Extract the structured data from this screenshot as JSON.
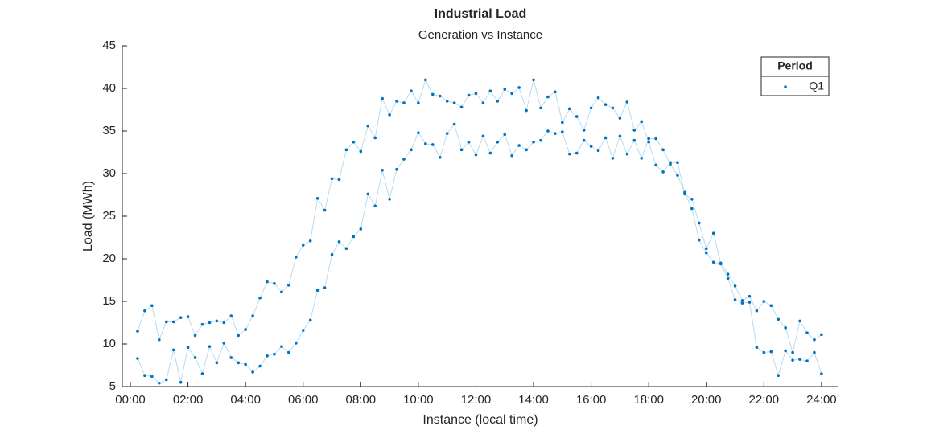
{
  "chart_data": {
    "type": "line",
    "title": "Industrial Load",
    "subtitle": "Generation vs Instance",
    "x_label": "Instance (local time)",
    "y_label": "Load (MWh)",
    "xlim": [
      -0.28,
      24.59
    ],
    "ylim": [
      5,
      45
    ],
    "xticks": [
      {
        "value": 0,
        "label": "00:00"
      },
      {
        "value": 2,
        "label": "02:00"
      },
      {
        "value": 4,
        "label": "04:00"
      },
      {
        "value": 6,
        "label": "06:00"
      },
      {
        "value": 8,
        "label": "08:00"
      },
      {
        "value": 10,
        "label": "10:00"
      },
      {
        "value": 12,
        "label": "12:00"
      },
      {
        "value": 14,
        "label": "14:00"
      },
      {
        "value": 16,
        "label": "16:00"
      },
      {
        "value": 18,
        "label": "18:00"
      },
      {
        "value": 20,
        "label": "20:00"
      },
      {
        "value": 22,
        "label": "22:00"
      },
      {
        "value": 24,
        "label": "24:00"
      }
    ],
    "yticks": [
      5,
      10,
      15,
      20,
      25,
      30,
      35,
      40,
      45
    ],
    "grid": false,
    "legend_title": "Period",
    "legend_position": "northeast",
    "line_color": "#b9dbef",
    "series": [
      {
        "name": "Q1",
        "color": "#0072bd",
        "x": [
          0.25,
          0.5,
          0.75,
          1,
          1.25,
          1.5,
          1.75,
          2,
          2.25,
          2.5,
          2.75,
          3,
          3.25,
          3.5,
          3.75,
          4,
          4.25,
          4.5,
          4.75,
          5,
          5.25,
          5.5,
          5.75,
          6,
          6.25,
          6.5,
          6.75,
          7,
          7.25,
          7.5,
          7.75,
          8,
          8.25,
          8.5,
          8.75,
          9,
          9.25,
          9.5,
          9.75,
          10,
          10.25,
          10.5,
          10.75,
          11,
          11.25,
          11.5,
          11.75,
          12,
          12.25,
          12.5,
          12.75,
          13,
          13.25,
          13.5,
          13.75,
          14,
          14.25,
          14.5,
          14.75,
          15,
          15.25,
          15.5,
          15.75,
          16,
          16.25,
          16.5,
          16.75,
          17,
          17.25,
          17.5,
          17.75,
          18,
          18.25,
          18.5,
          18.75,
          19,
          19.25,
          19.5,
          19.75,
          20,
          20.25,
          20.5,
          20.75,
          21,
          21.25,
          21.5,
          21.75,
          22,
          22.25,
          22.5,
          22.75,
          23,
          23.25,
          23.5,
          23.75,
          24,
          null,
          0.25,
          0.5,
          0.75,
          1,
          1.25,
          1.5,
          1.75,
          2,
          2.25,
          2.5,
          2.75,
          3,
          3.25,
          3.5,
          3.75,
          4,
          4.25,
          4.5,
          4.75,
          5,
          5.25,
          5.5,
          5.75,
          6,
          6.25,
          6.5,
          6.75,
          7,
          7.25,
          7.5,
          7.75,
          8,
          8.25,
          8.5,
          8.75,
          9,
          9.25,
          9.5,
          9.75,
          10,
          10.25,
          10.5,
          10.75,
          11,
          11.25,
          11.5,
          11.75,
          12,
          12.25,
          12.5,
          12.75,
          13,
          13.25,
          13.5,
          13.75,
          14,
          14.25,
          14.5,
          14.75,
          15,
          15.25,
          15.5,
          15.75,
          16,
          16.25,
          16.5,
          16.75,
          17,
          17.25,
          17.5,
          17.75,
          18,
          18.25,
          18.5,
          18.75,
          19,
          19.25,
          19.5,
          19.75,
          20,
          20.25,
          20.5,
          20.75,
          21,
          21.25,
          21.5,
          21.75,
          22,
          22.25,
          22.5,
          22.75,
          23,
          23.25,
          23.5,
          23.75,
          24
        ],
        "values": [
          11.5,
          13.9,
          14.5,
          10.5,
          12.6,
          12.6,
          13.1,
          13.2,
          11.0,
          12.3,
          12.5,
          12.7,
          12.5,
          13.3,
          11.0,
          11.7,
          13.3,
          15.4,
          17.3,
          17.1,
          16.1,
          16.9,
          20.2,
          21.6,
          22.1,
          27.1,
          25.7,
          29.4,
          29.3,
          32.8,
          33.7,
          32.6,
          35.6,
          34.2,
          38.8,
          36.9,
          38.5,
          38.3,
          39.7,
          38.3,
          41.0,
          39.3,
          39.1,
          38.5,
          38.3,
          37.8,
          39.2,
          39.4,
          38.3,
          39.7,
          38.5,
          39.9,
          39.4,
          40.1,
          37.4,
          41.0,
          37.7,
          39.0,
          39.6,
          36.0,
          37.6,
          36.7,
          35.1,
          37.7,
          38.9,
          38.1,
          37.7,
          36.5,
          38.4,
          35.1,
          36.1,
          33.7,
          31.0,
          30.2,
          31.3,
          31.3,
          27.6,
          27.0,
          24.2,
          21.2,
          23.0,
          19.5,
          18.2,
          16.8,
          15.1,
          15.6,
          13.9,
          15.0,
          14.5,
          12.9,
          11.9,
          9.0,
          12.7,
          11.3,
          10.5,
          11.1,
          null,
          8.3,
          6.3,
          6.2,
          5.4,
          5.8,
          9.3,
          5.5,
          9.6,
          8.4,
          6.5,
          9.7,
          7.8,
          10.1,
          8.4,
          7.8,
          7.6,
          6.7,
          7.4,
          8.6,
          8.8,
          9.7,
          9.0,
          10.1,
          11.6,
          12.8,
          16.3,
          16.6,
          20.5,
          22.0,
          21.2,
          22.6,
          23.5,
          27.6,
          26.2,
          30.4,
          27.0,
          30.5,
          31.7,
          32.8,
          34.8,
          33.5,
          33.4,
          31.9,
          34.7,
          35.8,
          32.8,
          33.7,
          32.2,
          34.4,
          32.4,
          33.7,
          34.6,
          32.1,
          33.3,
          32.8,
          33.7,
          33.9,
          35.0,
          34.7,
          34.9,
          32.3,
          32.4,
          33.9,
          33.2,
          32.7,
          34.2,
          31.8,
          34.4,
          32.3,
          33.9,
          31.8,
          34.1,
          34.1,
          32.8,
          31.1,
          29.8,
          27.8,
          25.9,
          22.2,
          20.7,
          19.6,
          19.4,
          17.7,
          15.2,
          14.8,
          14.9,
          9.6,
          9.0,
          9.1,
          6.3,
          9.2,
          8.1,
          8.2,
          8.0,
          9.0,
          6.5
        ]
      }
    ]
  }
}
